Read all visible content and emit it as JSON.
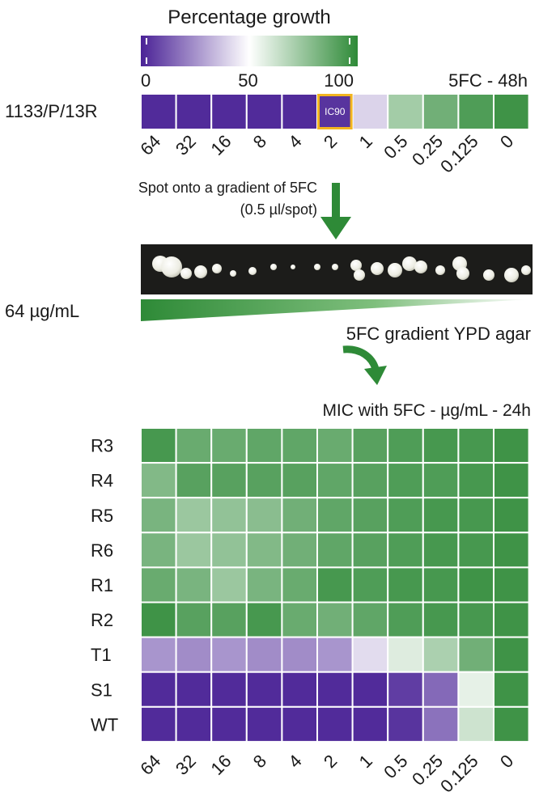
{
  "chart_data": [
    {
      "type": "heatmap",
      "title": "Percentage growth",
      "subtitle": "5FC - 48h",
      "colorbar_ticks": [
        "0",
        "50",
        "100"
      ],
      "colorbar_range": [
        0,
        100
      ],
      "colorscale": [
        "#4a2296",
        "#ffffff",
        "#2e8a37"
      ],
      "strain": "1133/P/13R",
      "x": [
        "64",
        "32",
        "16",
        "8",
        "4",
        "2",
        "1",
        "0.5",
        "0.25",
        "0.125",
        "0"
      ],
      "values": [
        2,
        2,
        2,
        2,
        2,
        4,
        40,
        72,
        84,
        92,
        96
      ],
      "highlight": {
        "index": 5,
        "label": "IC90",
        "color": "#f2b51f"
      }
    },
    {
      "type": "heatmap",
      "title": "MIC with 5FC - µg/mL - 24h",
      "x": [
        "64",
        "32",
        "16",
        "8",
        "4",
        "2",
        "1",
        "0.5",
        "0.25",
        "0.125",
        "0"
      ],
      "y": [
        "R3",
        "R4",
        "R5",
        "R6",
        "R1",
        "R2",
        "T1",
        "S1",
        "WT"
      ],
      "values": [
        [
          94,
          86,
          86,
          88,
          88,
          86,
          90,
          92,
          94,
          94,
          96
        ],
        [
          80,
          90,
          90,
          90,
          90,
          88,
          90,
          92,
          92,
          94,
          96
        ],
        [
          82,
          74,
          76,
          78,
          84,
          88,
          90,
          92,
          94,
          94,
          96
        ],
        [
          82,
          74,
          76,
          80,
          84,
          88,
          90,
          92,
          94,
          94,
          96
        ],
        [
          86,
          82,
          74,
          82,
          86,
          94,
          92,
          94,
          94,
          96,
          96
        ],
        [
          96,
          90,
          90,
          94,
          86,
          84,
          88,
          92,
          94,
          94,
          96
        ],
        [
          26,
          24,
          26,
          24,
          24,
          26,
          42,
          58,
          70,
          84,
          96
        ],
        [
          2,
          2,
          2,
          2,
          2,
          2,
          2,
          6,
          16,
          56,
          96
        ],
        [
          2,
          2,
          2,
          2,
          2,
          2,
          2,
          4,
          18,
          62,
          96
        ]
      ]
    }
  ],
  "annotations": {
    "spot_text_1": "Spot onto a gradient of 5FC",
    "spot_text_2": "(0.5 µl/spot)",
    "gradient_label": "64 µg/mL",
    "agar_label": "5FC gradient YPD agar"
  },
  "colors": {
    "arrow": "#2e8a37",
    "gradient": "#2e8a37",
    "photo_bg": "#1c1c1a"
  }
}
